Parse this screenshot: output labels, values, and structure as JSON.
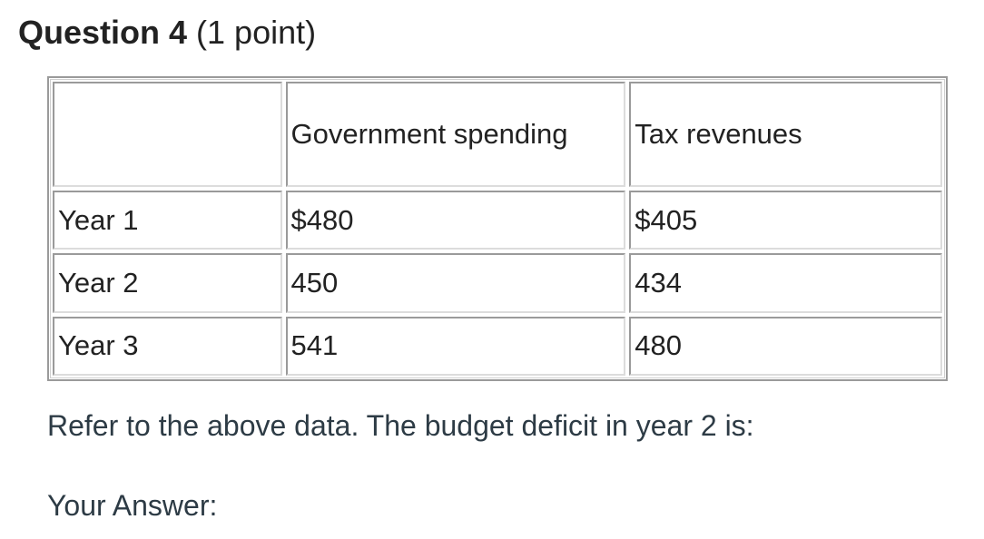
{
  "question": {
    "title": "Question 4",
    "points": "(1 point)"
  },
  "table": {
    "headers": [
      "",
      "Government spending",
      "Tax revenues"
    ],
    "rows": [
      {
        "label": "Year 1",
        "spending": "$480",
        "tax": "$405"
      },
      {
        "label": "Year 2",
        "spending": "450",
        "tax": "434"
      },
      {
        "label": "Year 3",
        "spending": "541",
        "tax": "480"
      }
    ]
  },
  "prompt": "Refer to the above data. The budget deficit in year 2 is:",
  "answer_label": "Your Answer:"
}
